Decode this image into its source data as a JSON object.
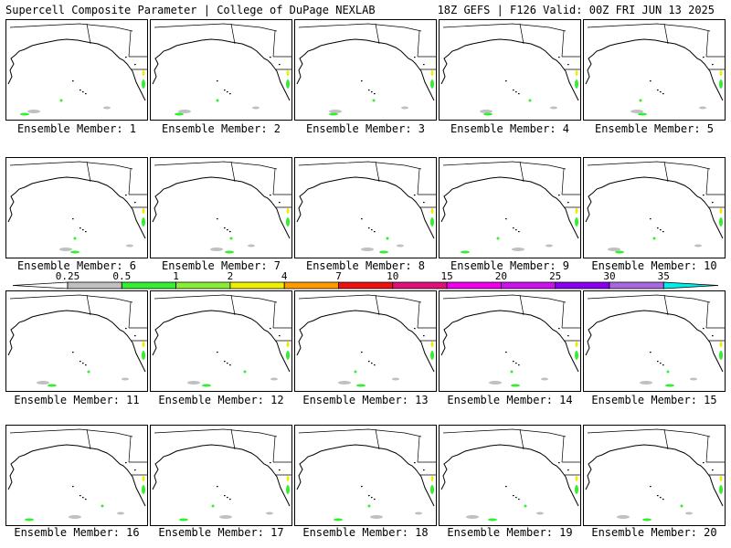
{
  "header": {
    "title_left": "Supercell Composite Parameter | College of DuPage NEXLAB",
    "title_right": "18Z GEFS | F126 Valid: 00Z FRI JUN 13 2025"
  },
  "colorbar": {
    "labels": [
      "0.25",
      "0.5",
      "1",
      "2",
      "4",
      "7",
      "10",
      "15",
      "20",
      "25",
      "30",
      "35"
    ],
    "colors": [
      "#ffffff",
      "#c0c0c0",
      "#33ee33",
      "#88ee33",
      "#eeee00",
      "#ff9900",
      "#ee1111",
      "#dd1177",
      "#ee00ee",
      "#cc11ee",
      "#8800ee",
      "#aa66dd",
      "#00eeee"
    ]
  },
  "panels": [
    {
      "caption": "Ensemble Member: 1"
    },
    {
      "caption": "Ensemble Member: 2"
    },
    {
      "caption": "Ensemble Member: 3"
    },
    {
      "caption": "Ensemble Member: 4"
    },
    {
      "caption": "Ensemble Member: 5"
    },
    {
      "caption": "Ensemble Member: 6"
    },
    {
      "caption": "Ensemble Member: 7"
    },
    {
      "caption": "Ensemble Member: 8"
    },
    {
      "caption": "Ensemble Member: 9"
    },
    {
      "caption": "Ensemble Member: 10"
    },
    {
      "caption": "Ensemble Member: 11"
    },
    {
      "caption": "Ensemble Member: 12"
    },
    {
      "caption": "Ensemble Member: 13"
    },
    {
      "caption": "Ensemble Member: 14"
    },
    {
      "caption": "Ensemble Member: 15"
    },
    {
      "caption": "Ensemble Member: 16"
    },
    {
      "caption": "Ensemble Member: 17"
    },
    {
      "caption": "Ensemble Member: 18"
    },
    {
      "caption": "Ensemble Member: 19"
    },
    {
      "caption": "Ensemble Member: 20"
    }
  ]
}
